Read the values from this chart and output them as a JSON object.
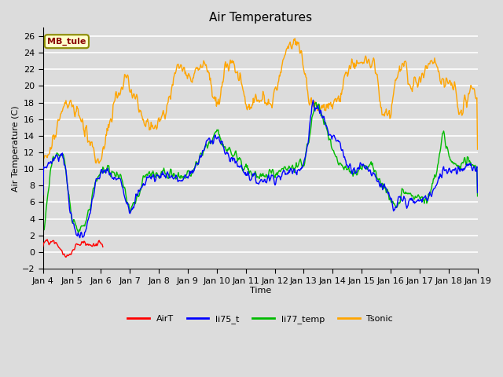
{
  "title": "Air Temperatures",
  "xlabel": "Time",
  "ylabel": "Air Temperature (C)",
  "annotation": "MB_tule",
  "ylim": [
    -2,
    27
  ],
  "yticks": [
    -2,
    0,
    2,
    4,
    6,
    8,
    10,
    12,
    14,
    16,
    18,
    20,
    22,
    24,
    26
  ],
  "xtick_labels": [
    "Jan 4",
    "Jan 5",
    "Jan 6",
    "Jan 7",
    "Jan 8",
    "Jan 9",
    "Jan 10",
    "Jan 11",
    "Jan 12",
    "Jan 13",
    "Jan 14",
    "Jan 15",
    "Jan 16",
    "Jan 17",
    "Jan 18",
    "Jan 19"
  ],
  "series_colors": {
    "AirT": "#ff0000",
    "li75_t": "#0000ff",
    "li77_temp": "#00bb00",
    "Tsonic": "#ffa500"
  },
  "background_color": "#dcdcdc",
  "plot_bg_color": "#dcdcdc",
  "grid_color": "#ffffff",
  "title_fontsize": 11,
  "axis_label_fontsize": 8,
  "tick_fontsize": 8,
  "n_days": 15,
  "n_pts": 720
}
